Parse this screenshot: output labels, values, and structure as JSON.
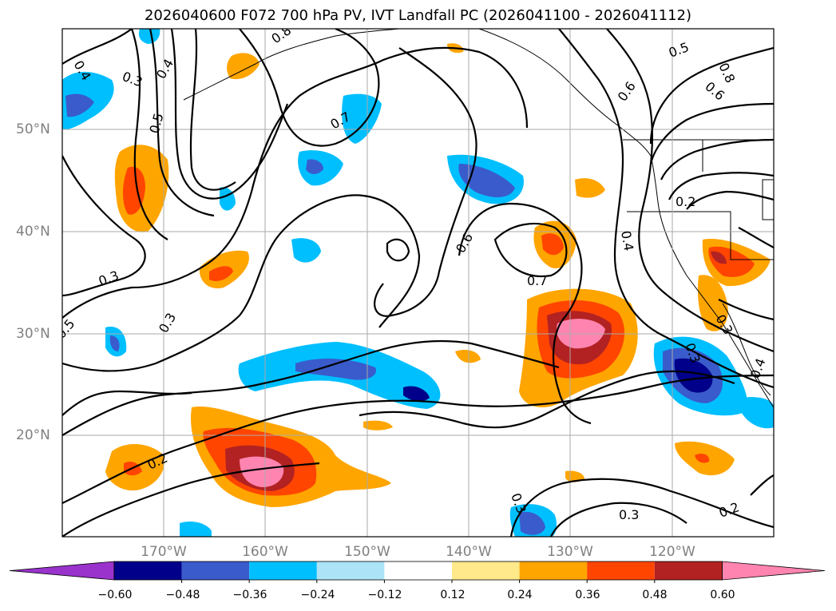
{
  "title": "2026040600 F072 700 hPa PV, IVT Landfall PC (2026041100 - 2026041112)",
  "lat_labels": [
    "50°N",
    "40°N",
    "30°N",
    "20°N"
  ],
  "lon_labels": [
    "170°W",
    "160°W",
    "150°W",
    "140°W",
    "130°W",
    "120°W"
  ],
  "colorbar": {
    "colors": [
      "#9933cc",
      "#00008b",
      "#3a5bcb",
      "#00bfff",
      "#ace3f7",
      "#ffffff",
      "#ffe98a",
      "#ffa500",
      "#ff4500",
      "#b22222",
      "#ff85b0"
    ],
    "tick_labels": [
      "−0.60",
      "−0.48",
      "−0.36",
      "−0.24",
      "−0.12",
      "0.12",
      "0.24",
      "0.36",
      "0.48",
      "0.60"
    ]
  },
  "contour_labels": [
    "0.4",
    "0.3",
    "0.4",
    "0.5",
    "0.8",
    "0.7",
    "0.6",
    "0.5",
    "0.8",
    "0.6",
    "0.2",
    "0.4",
    "0.3",
    "0.6",
    "0.7",
    "0.5",
    "0.3",
    "0.3",
    "0.4",
    "0.3",
    "0.2",
    "0.3",
    "0.2",
    "0.3"
  ]
}
